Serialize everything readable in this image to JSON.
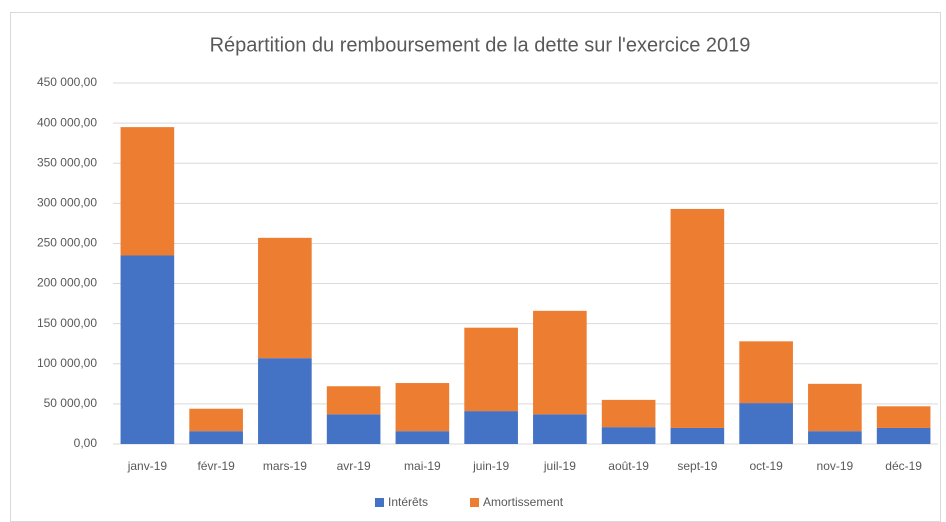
{
  "chart_data": {
    "type": "stacked_bar",
    "title": "Répartition du remboursement de la dette sur l'exercice 2019",
    "categories": [
      "janv-19",
      "févr-19",
      "mars-19",
      "avr-19",
      "mai-19",
      "juin-19",
      "juil-19",
      "août-19",
      "sept-19",
      "oct-19",
      "nov-19",
      "déc-19"
    ],
    "series": [
      {
        "name": "Intérêts",
        "color": "#4472c4",
        "values": [
          235000,
          16000,
          107000,
          37000,
          16000,
          41000,
          37000,
          21000,
          20000,
          51000,
          16000,
          20000
        ]
      },
      {
        "name": "Amortissement",
        "color": "#ed7d31",
        "values": [
          160000,
          28000,
          150000,
          35000,
          60000,
          104000,
          129000,
          34000,
          273000,
          77000,
          59000,
          27000
        ]
      }
    ],
    "ylim": [
      0,
      450000
    ],
    "yticks": [
      {
        "value": 0,
        "label": "0,00"
      },
      {
        "value": 50000,
        "label": "50 000,00"
      },
      {
        "value": 100000,
        "label": "100 000,00"
      },
      {
        "value": 150000,
        "label": "150 000,00"
      },
      {
        "value": 200000,
        "label": "200 000,00"
      },
      {
        "value": 250000,
        "label": "250 000,00"
      },
      {
        "value": 300000,
        "label": "300 000,00"
      },
      {
        "value": 350000,
        "label": "350 000,00"
      },
      {
        "value": 400000,
        "label": "400 000,00"
      },
      {
        "value": 450000,
        "label": "450 000,00"
      }
    ],
    "grid": true,
    "legend": "bottom"
  }
}
